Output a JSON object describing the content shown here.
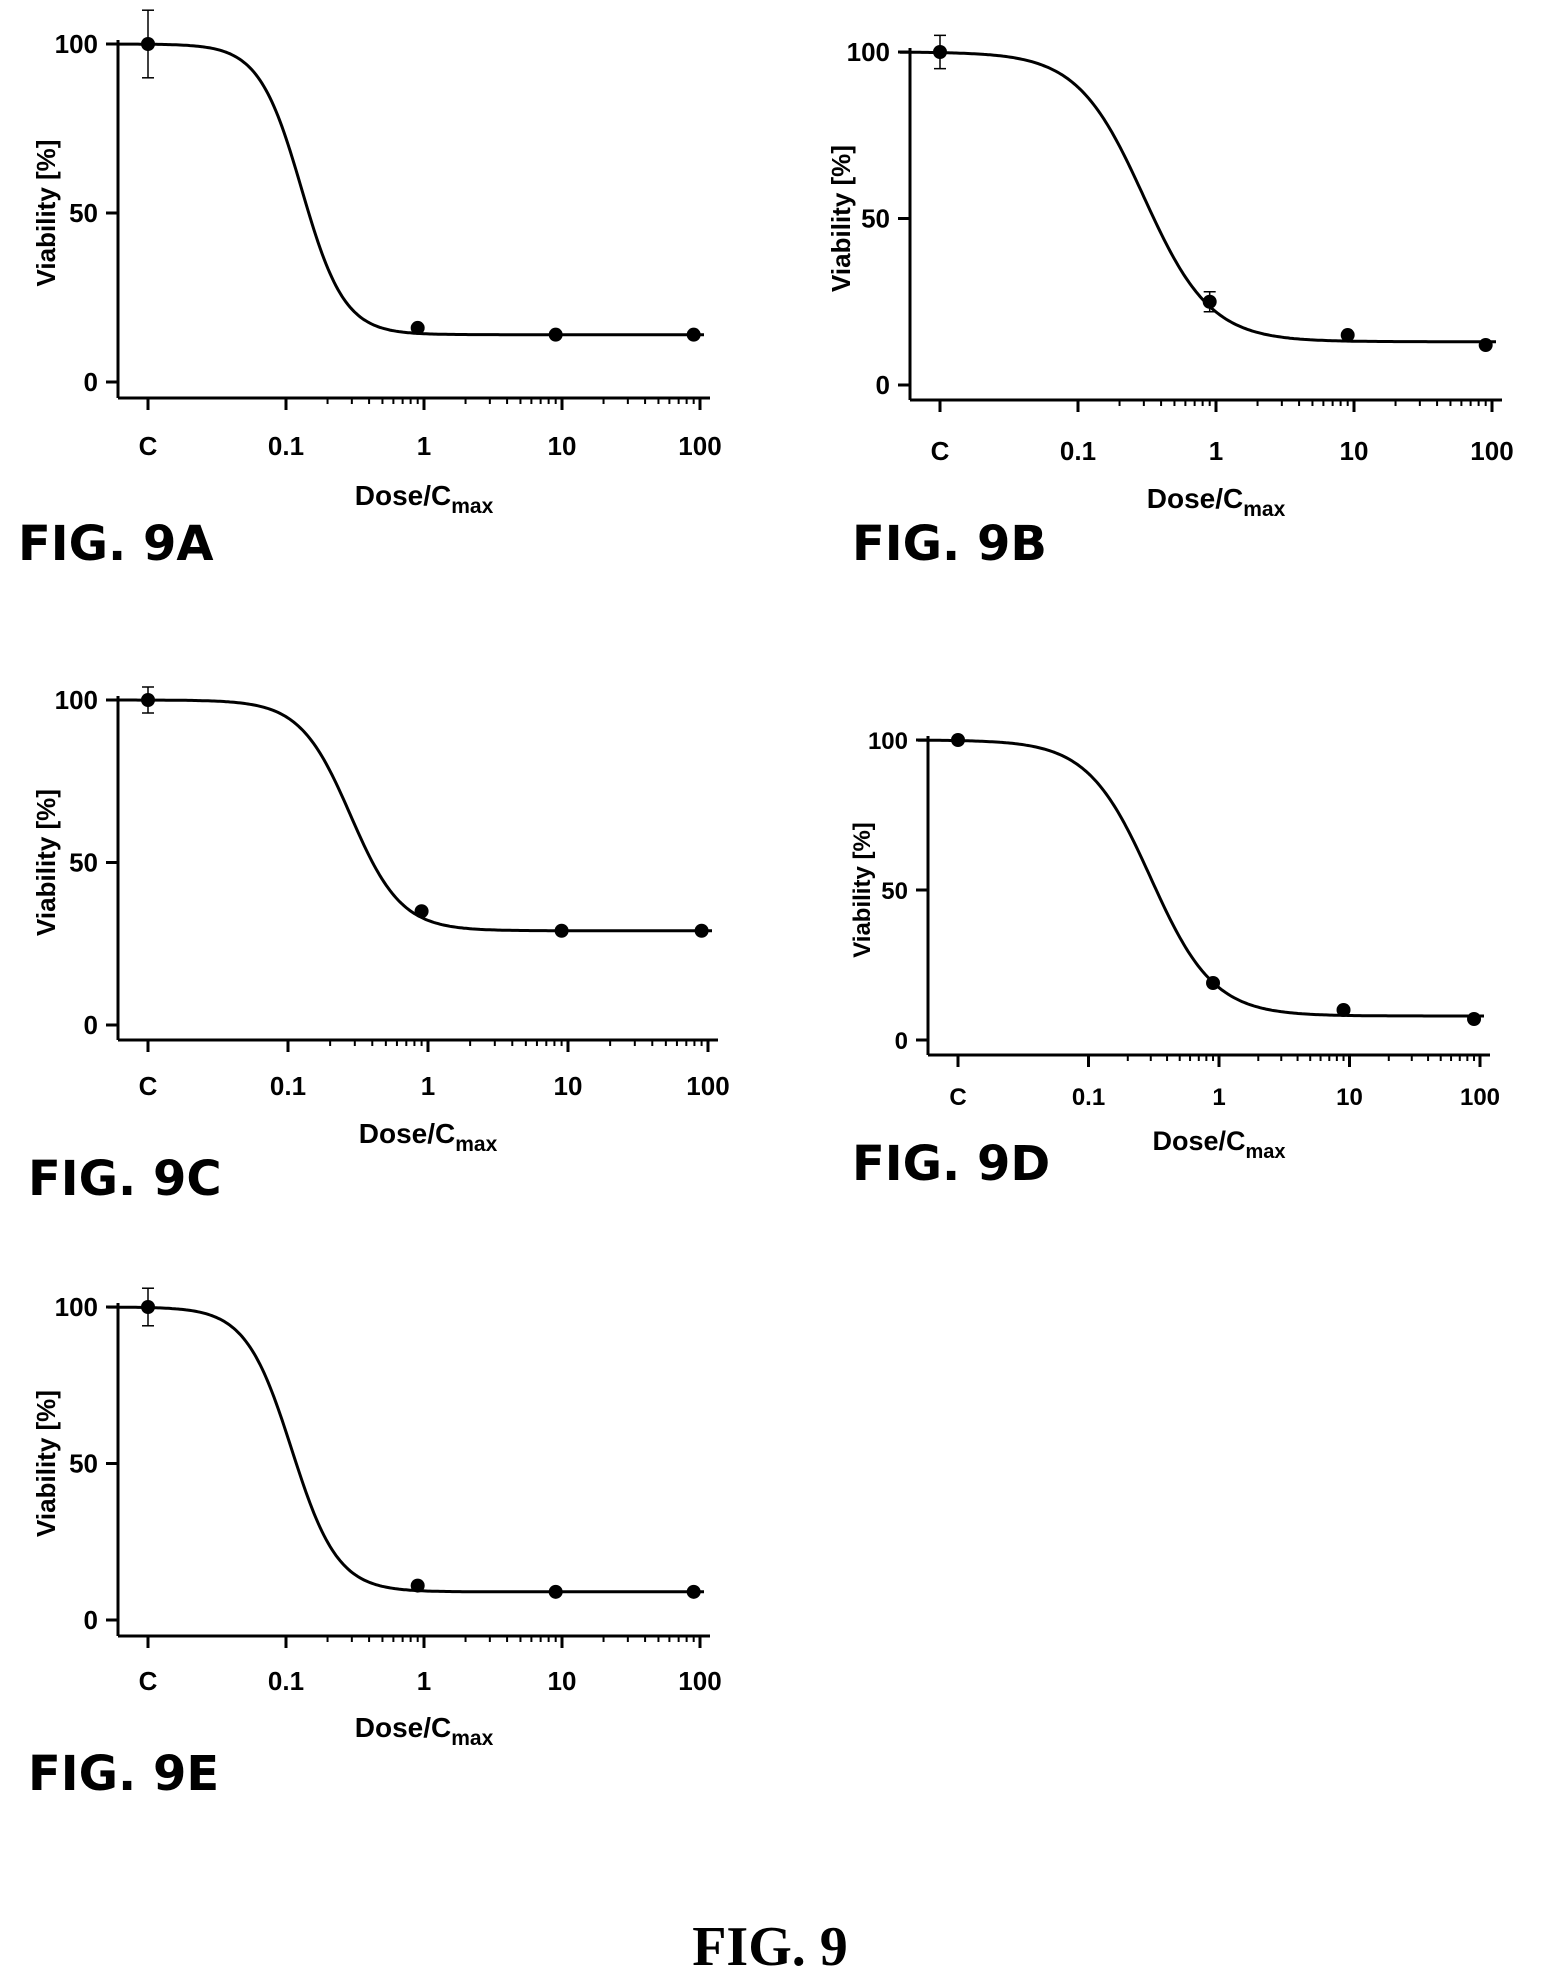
{
  "figure_title": "FIG. 9",
  "chart_data": [
    {
      "type": "line",
      "panel_label": "FIG. 9A",
      "ylabel": "Viability [%]",
      "xlabel_main": "Dose/C",
      "xlabel_sub": "max",
      "x_scale": "log",
      "x_ticks": [
        "C",
        "0.1",
        "1",
        "10",
        "100"
      ],
      "y_ticks": [
        "0",
        "50",
        "100"
      ],
      "ylim": [
        0,
        100
      ],
      "points": [
        {
          "x": "C",
          "y": 100,
          "err": 10
        },
        {
          "x": "1",
          "y": 16,
          "err": 0
        },
        {
          "x": "10",
          "y": 14,
          "err": 0
        },
        {
          "x": "100",
          "y": 14,
          "err": 0
        }
      ],
      "fit": {
        "top": 100,
        "bottom": 14,
        "ec50": 0.13,
        "hill": 2.8
      }
    },
    {
      "type": "line",
      "panel_label": "FIG. 9B",
      "ylabel": "Viability [%]",
      "xlabel_main": "Dose/C",
      "xlabel_sub": "max",
      "x_scale": "log",
      "x_ticks": [
        "C",
        "0.1",
        "1",
        "10",
        "100"
      ],
      "y_ticks": [
        "0",
        "50",
        "100"
      ],
      "ylim": [
        0,
        100
      ],
      "points": [
        {
          "x": "C",
          "y": 100,
          "err": 5
        },
        {
          "x": "1",
          "y": 25,
          "err": 3
        },
        {
          "x": "10",
          "y": 15,
          "err": 0
        },
        {
          "x": "100",
          "y": 12,
          "err": 0
        }
      ],
      "fit": {
        "top": 100,
        "bottom": 13,
        "ec50": 0.3,
        "hill": 1.8
      }
    },
    {
      "type": "line",
      "panel_label": "FIG. 9C",
      "ylabel": "Viability [%]",
      "xlabel_main": "Dose/C",
      "xlabel_sub": "max",
      "x_scale": "log",
      "x_ticks": [
        "C",
        "0.1",
        "1",
        "10",
        "100"
      ],
      "y_ticks": [
        "0",
        "50",
        "100"
      ],
      "ylim": [
        0,
        100
      ],
      "points": [
        {
          "x": "C",
          "y": 100,
          "err": 4
        },
        {
          "x": "1",
          "y": 35,
          "err": 0
        },
        {
          "x": "10",
          "y": 29,
          "err": 0
        },
        {
          "x": "100",
          "y": 29,
          "err": 0
        }
      ],
      "fit": {
        "top": 100,
        "bottom": 29,
        "ec50": 0.28,
        "hill": 2.4
      }
    },
    {
      "type": "line",
      "panel_label": "FIG. 9D",
      "ylabel": "Viability [%]",
      "xlabel_main": "Dose/C",
      "xlabel_sub": "max",
      "x_scale": "log",
      "x_ticks": [
        "C",
        "0.1",
        "1",
        "10",
        "100"
      ],
      "y_ticks": [
        "0",
        "50",
        "100"
      ],
      "ylim": [
        0,
        100
      ],
      "points": [
        {
          "x": "C",
          "y": 100,
          "err": 0
        },
        {
          "x": "1",
          "y": 19,
          "err": 0
        },
        {
          "x": "10",
          "y": 10,
          "err": 0
        },
        {
          "x": "100",
          "y": 7,
          "err": 0
        }
      ],
      "fit": {
        "top": 100,
        "bottom": 8,
        "ec50": 0.3,
        "hill": 1.8
      }
    },
    {
      "type": "line",
      "panel_label": "FIG. 9E",
      "ylabel": "Viability [%]",
      "xlabel_main": "Dose/C",
      "xlabel_sub": "max",
      "x_scale": "log",
      "x_ticks": [
        "C",
        "0.1",
        "1",
        "10",
        "100"
      ],
      "y_ticks": [
        "0",
        "50",
        "100"
      ],
      "ylim": [
        0,
        100
      ],
      "points": [
        {
          "x": "C",
          "y": 100,
          "err": 6
        },
        {
          "x": "1",
          "y": 11,
          "err": 0
        },
        {
          "x": "10",
          "y": 9,
          "err": 0
        },
        {
          "x": "100",
          "y": 9,
          "err": 0
        }
      ],
      "fit": {
        "top": 100,
        "bottom": 9,
        "ec50": 0.11,
        "hill": 2.6
      }
    }
  ]
}
